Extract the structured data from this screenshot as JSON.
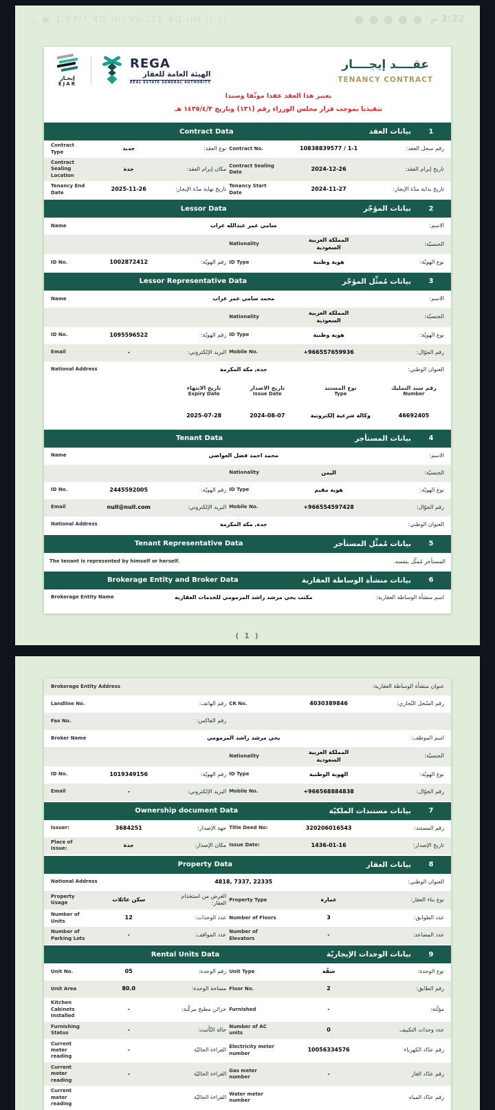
{
  "colors": {
    "accent_teal": "#1a5a4c",
    "brand_navy": "#1d2b4f",
    "title_gold": "#b5975a",
    "alert_red": "#e3242b",
    "page_green": "#e0edda"
  },
  "status_bar": {
    "left_icons": "◬ ▣ 1.57ᴷᴮ 4G ılıl Vo LTE 4G ılıl (( ))",
    "right_icons": "⬤ ⬤ ⬤ ⬤ ⬤",
    "time": "3:22 م"
  },
  "header": {
    "ejar": {
      "name_ar": "إيجـار",
      "name_en": "EJAR"
    },
    "rega": {
      "wordmark": "REGA",
      "name_ar": "الهيئة العامة للعقار",
      "name_en": "REAL ESTATE GENERAL AUTHORITY"
    },
    "title_ar": "عقــــد إيجــــار",
    "title_en": "TENANCY CONTRACT"
  },
  "disclaimer": {
    "line1": "يعتبر هذا العقد عقدا موثّقا وسندا",
    "line2": "تنفيذيا بموجب قرار مجلس الوزراء رقم (١٣١) وتاريخ ١٤٣٥/٤/٣ هـ"
  },
  "footer": {
    "page_label": "( 1 )"
  },
  "sections_page1": [
    {
      "number": "1",
      "title_ar": "بيانات العقد",
      "title_en": "Contract Data",
      "rows": [
        {
          "type": "pair",
          "right": {
            "label_ar": "رقم سجل العقد:",
            "value": "10838839577 / 1-1",
            "label_en": "Contract No."
          },
          "left": {
            "label_ar": "نوع العقد:",
            "value": "جديد",
            "label_en": "Contract Type"
          }
        },
        {
          "type": "pair",
          "right": {
            "label_ar": "تاريخ إبرام العقد:",
            "value": "2024-12-26",
            "label_en": "Contract Sealing Date"
          },
          "left": {
            "label_ar": "مكان إبرام العقد:",
            "value": "جدة",
            "label_en": "Contract Sealing Location"
          }
        },
        {
          "type": "pair",
          "right": {
            "label_ar": "تاريخ بداية مدّة الإيجار:",
            "value": "2024-11-27",
            "label_en": "Tenancy Start Date"
          },
          "left": {
            "label_ar": "تاريخ نهاية مدّة الإيجار:",
            "value": "2025-11-26",
            "label_en": "Tenancy End Date"
          }
        }
      ]
    },
    {
      "number": "2",
      "title_ar": "بيانات المؤجّر",
      "title_en": "Lessor Data",
      "rows": [
        {
          "type": "full",
          "label_ar": "الاسم:",
          "value": "سامي عمر عبدالله غراب",
          "label_en": "Name"
        },
        {
          "type": "right_only",
          "right": {
            "label_ar": "الجنسيّة:",
            "value": "المملكة العربية السعودية",
            "label_en": "Nationality"
          }
        },
        {
          "type": "pair",
          "right": {
            "label_ar": "نوع الهويّة:",
            "value": "هوية وطنية",
            "label_en": "ID Type"
          },
          "left": {
            "label_ar": "رقم الهويّة:",
            "value": "1002872412",
            "label_en": "ID No."
          }
        }
      ]
    },
    {
      "number": "3",
      "title_ar": "بيانات مُمثِّل المؤجّر",
      "title_en": "Lessor Representative Data",
      "rows": [
        {
          "type": "full",
          "label_ar": "الاسم:",
          "value": "محمد سامي عمر غراب",
          "label_en": "Name"
        },
        {
          "type": "right_only",
          "right": {
            "label_ar": "الجنسيّة:",
            "value": "المملكة العربية السعودية",
            "label_en": "Nationality"
          }
        },
        {
          "type": "pair",
          "right": {
            "label_ar": "نوع الهويّة:",
            "value": "هوية وطنية",
            "label_en": "ID Type"
          },
          "left": {
            "label_ar": "رقم الهويّة:",
            "value": "1095596522",
            "label_en": "ID No."
          }
        },
        {
          "type": "pair",
          "right": {
            "label_ar": "رقم الجوّال:",
            "value": "+966557659936",
            "label_en": "Mobile No."
          },
          "left": {
            "label_ar": "البريد الإلكتروني:",
            "value": "-",
            "label_en": "Email"
          }
        },
        {
          "type": "full",
          "label_ar": "العنوان الوطني:",
          "value": "جدة, مكة المكرمة",
          "label_en": "National Address"
        },
        {
          "type": "subtable",
          "columns": [
            {
              "label_ar": "رقم سند التمليك",
              "label_en": "Number",
              "value": "46692405"
            },
            {
              "label_ar": "نوع المستند",
              "label_en": "Type",
              "value": "وكالة شرعية إلكترونية"
            },
            {
              "label_ar": "تاريخ الاصدار",
              "label_en": "Issue Date",
              "value": "2024-08-07"
            },
            {
              "label_ar": "تاريخ الانتهاء",
              "label_en": "Expiry Date",
              "value": "2025-07-28"
            }
          ]
        }
      ]
    },
    {
      "number": "4",
      "title_ar": "بيانات المستأجر",
      "title_en": "Tenant Data",
      "rows": [
        {
          "type": "full",
          "label_ar": "الاسم:",
          "value": "محمد احمد فضل العواضي",
          "label_en": "Name"
        },
        {
          "type": "right_only",
          "right": {
            "label_ar": "الجنسيّة:",
            "value": "اليمن",
            "label_en": "Nationality"
          }
        },
        {
          "type": "pair",
          "right": {
            "label_ar": "نوع الهويّة:",
            "value": "هوية مقيم",
            "label_en": "ID Type"
          },
          "left": {
            "label_ar": "رقم الهويّة:",
            "value": "2445592005",
            "label_en": "ID No."
          }
        },
        {
          "type": "pair",
          "right": {
            "label_ar": "رقم الجوّال:",
            "value": "+966554597428",
            "label_en": "Mobile No."
          },
          "left": {
            "label_ar": "البريد الإلكتروني:",
            "value": "null@null.com",
            "label_en": "Email"
          }
        },
        {
          "type": "full",
          "label_ar": "العنوان الوطني:",
          "value": "جدة, مكة المكرمة",
          "label_en": "National Address"
        }
      ]
    },
    {
      "number": "5",
      "title_ar": "بيانات مُمثِّل المستأجر",
      "title_en": "Tenant Representative Data",
      "rows": [
        {
          "type": "text",
          "text_ar": "المستأجر مُمثِّل بنفسه.",
          "text_en": "The tenant is represented by himself or herself."
        }
      ]
    },
    {
      "number": "6",
      "title_ar": "بيانات منشأة الوساطة العقارية",
      "title_en": "Brokerage Entity and Broker Data",
      "rows": [
        {
          "type": "full",
          "label_ar": "اسم منشأة الوساطة العقارية:",
          "value": "مكتب يحي مرشد راشد المزمومي للخدمات العقارية",
          "label_en": "Brokerage Entity Name"
        }
      ]
    }
  ],
  "continuation_rows_page2": [
    {
      "type": "full",
      "label_ar": "عنوان منشأة الوساطة العقارية:",
      "value": "",
      "label_en": "Brokerage Entity Address"
    },
    {
      "type": "pair",
      "right": {
        "label_ar": "رقم السّجل التّجاري:",
        "value": "4030389846",
        "label_en": "CR No."
      },
      "left": {
        "label_ar": "رقم الهاتف:",
        "value": "",
        "label_en": "Landline No."
      }
    },
    {
      "type": "left_only",
      "left": {
        "label_ar": "رقم الفاكس:",
        "value": "",
        "label_en": "Fax No."
      }
    },
    {
      "type": "full",
      "label_ar": "اسم الموظف:",
      "value": "يحي مرشد راشد المزمومي",
      "label_en": "Broker Name"
    },
    {
      "type": "right_only",
      "right": {
        "label_ar": "الجنسيّة:",
        "value": "المملكة العربية السعودية",
        "label_en": "Nationality"
      }
    },
    {
      "type": "pair",
      "right": {
        "label_ar": "نوع الهويّة:",
        "value": "الهوية الوطنية",
        "label_en": "ID Type"
      },
      "left": {
        "label_ar": "رقم الهويّة:",
        "value": "1019349156",
        "label_en": "ID No."
      }
    },
    {
      "type": "pair",
      "right": {
        "label_ar": "رقم الجوّال:",
        "value": "+966568884838",
        "label_en": "Mobile No."
      },
      "left": {
        "label_ar": "البريد الإلكتروني:",
        "value": "-",
        "label_en": "Email"
      }
    }
  ],
  "sections_page2": [
    {
      "number": "7",
      "title_ar": "بيانات مستندات الملكيّة",
      "title_en": "Ownership document Data",
      "rows": [
        {
          "type": "pair",
          "right": {
            "label_ar": "رقم المستند:",
            "value": "320206016543",
            "label_en": "Title Deed No:"
          },
          "left": {
            "label_ar": "جهة الإصدار:",
            "value": "3684251",
            "label_en": "Issuer:"
          }
        },
        {
          "type": "pair",
          "right": {
            "label_ar": "تاريخ الإصدار:",
            "value": "1436-01-16",
            "label_en": "Issue Date:"
          },
          "left": {
            "label_ar": "مكان الإصدار:",
            "value": "جدة",
            "label_en": "Place of Issue:"
          }
        }
      ]
    },
    {
      "number": "8",
      "title_ar": "بيانات العقار",
      "title_en": "Property Data",
      "rows": [
        {
          "type": "full",
          "label_ar": "العنوان الوطني:",
          "value": "4818, 7337, 22335",
          "label_en": "National Address"
        },
        {
          "type": "pair",
          "right": {
            "label_ar": "نوع بناء العقار:",
            "value": "عمارة",
            "label_en": "Property Type"
          },
          "left": {
            "label_ar": "الغرض من استخدام العقار:",
            "value": "سكن عائلات",
            "label_en": "Property Usage"
          }
        },
        {
          "type": "pair",
          "right": {
            "label_ar": "عدد الطوابق:",
            "value": "3",
            "label_en": "Number of Floors"
          },
          "left": {
            "label_ar": "عدد الوحدات:",
            "value": "12",
            "label_en": "Number of Units"
          }
        },
        {
          "type": "pair",
          "right": {
            "label_ar": "عدد المصاعد:",
            "value": "-",
            "label_en": "Number of Elevators"
          },
          "left": {
            "label_ar": "عدد المواقف:",
            "value": "-",
            "label_en": "Number of Parking Lots"
          }
        }
      ]
    },
    {
      "number": "9",
      "title_ar": "بيانات الوحدات الإيجاريّة",
      "title_en": "Rental Units Data",
      "rows": [
        {
          "type": "pair",
          "right": {
            "label_ar": "نوع الوحدة:",
            "value": "شقّة",
            "label_en": "Unit Type"
          },
          "left": {
            "label_ar": "رقم الوحدة:",
            "value": "05",
            "label_en": "Unit No."
          }
        },
        {
          "type": "pair",
          "right": {
            "label_ar": "رقم الطابق:",
            "value": "2",
            "label_en": "Floor No."
          },
          "left": {
            "label_ar": "مساحة الوحدة:",
            "value": "80.0",
            "label_en": "Unit Area"
          }
        },
        {
          "type": "pair",
          "right": {
            "label_ar": "مؤثّثة:",
            "value": "-",
            "label_en": "Furnished"
          },
          "left": {
            "label_ar": "خزائن مطبخ مركّبة:",
            "value": "-",
            "label_en": "Kitchen Cabinets Installed"
          }
        },
        {
          "type": "pair",
          "right": {
            "label_ar": "عدد وحدات التكييف",
            "value": "0",
            "label_en": "Number of AC units"
          },
          "left": {
            "label_ar": "حالة التّأثيث:",
            "value": "-",
            "label_en": "Furnishing Status"
          }
        },
        {
          "type": "pair",
          "right": {
            "label_ar": "رقم عدّاد الكهرباء",
            "value": "10056334576",
            "label_en": "Electricity meter number"
          },
          "left": {
            "label_ar": "القراءة الحاليّة",
            "value": "-",
            "label_en": "Current meter reading"
          }
        },
        {
          "type": "pair",
          "right": {
            "label_ar": "رقم عدّاد الغاز",
            "value": "-",
            "label_en": "Gas meter number"
          },
          "left": {
            "label_ar": "القراءة الحاليّة",
            "value": "-",
            "label_en": "Current meter reading"
          }
        },
        {
          "type": "pair",
          "right": {
            "label_ar": "رقم عدّاد المياه",
            "value": "",
            "label_en": "Water meter number"
          },
          "left": {
            "label_ar": "القراءة الحاليّة",
            "value": "",
            "label_en": "Current meter reading"
          }
        }
      ]
    }
  ]
}
